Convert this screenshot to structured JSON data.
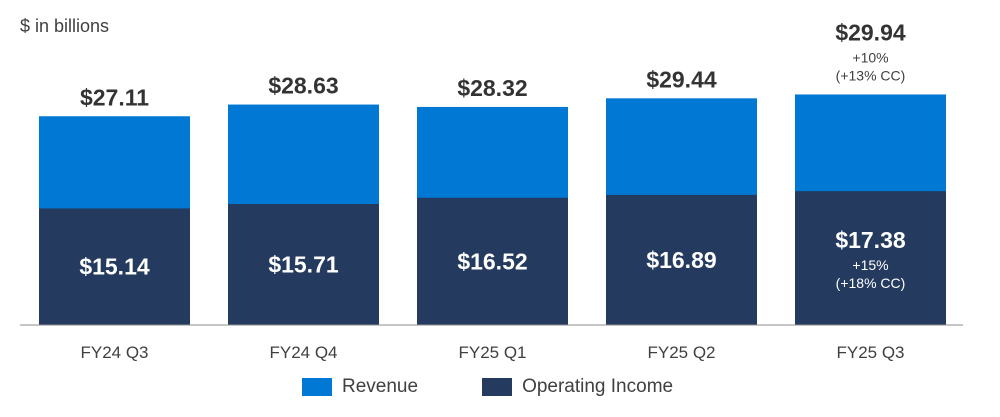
{
  "unit_label": "$ in billions",
  "chart_data": {
    "type": "bar",
    "stacking": "overlay",
    "categories": [
      "FY24 Q3",
      "FY24 Q4",
      "FY25 Q1",
      "FY25 Q2",
      "FY25 Q3"
    ],
    "series": [
      {
        "name": "Revenue",
        "color": "#0078D4",
        "values": [
          27.11,
          28.63,
          28.32,
          29.44,
          29.94
        ]
      },
      {
        "name": "Operating Income",
        "color": "#243A5E",
        "values": [
          15.14,
          15.71,
          16.52,
          16.89,
          17.38
        ]
      }
    ],
    "value_labels": {
      "revenue": [
        "$27.11",
        "$28.63",
        "$28.32",
        "$29.44",
        "$29.94"
      ],
      "operating_income": [
        "$15.14",
        "$15.71",
        "$16.52",
        "$16.89",
        "$17.38"
      ]
    },
    "annotations": {
      "revenue_growth": [
        "+10%",
        "(+13% CC)"
      ],
      "operating_income_growth": [
        "+15%",
        "(+18% CC)"
      ]
    },
    "axis_color": "#8C8C8C",
    "grid": false,
    "legend_position": "bottom"
  }
}
